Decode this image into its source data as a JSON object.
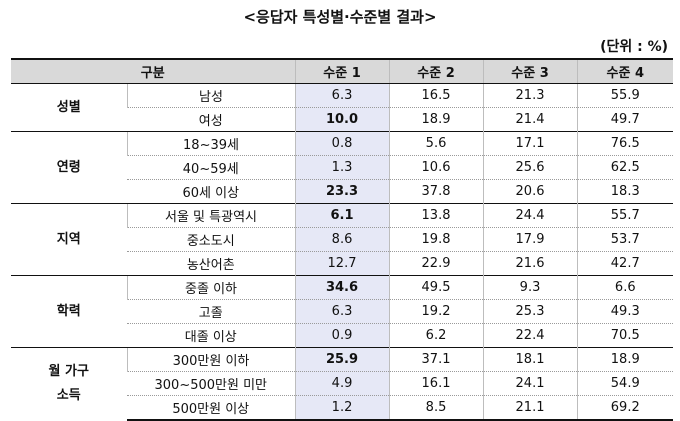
{
  "title": "<응답자 특성별·수준별 결과>",
  "unit": "(단위 : %)",
  "headers": [
    "구분",
    "수준 1",
    "수준 2",
    "수준 3",
    "수준 4"
  ],
  "groups": [
    {
      "name": "성별",
      "rows": [
        {
          "label": "남성",
          "values": [
            "6.3",
            "16.5",
            "21.3",
            "55.9"
          ],
          "bold": false
        },
        {
          "label": "여성",
          "values": [
            "10.0",
            "18.9",
            "21.4",
            "49.7"
          ],
          "bold": true
        }
      ]
    },
    {
      "name": "연령",
      "rows": [
        {
          "label": "18~39세",
          "values": [
            "0.8",
            "5.6",
            "17.1",
            "76.5"
          ],
          "bold": false
        },
        {
          "label": "40~59세",
          "values": [
            "1.3",
            "10.6",
            "25.6",
            "62.5"
          ],
          "bold": false
        },
        {
          "label": "60세 이상",
          "values": [
            "23.3",
            "37.8",
            "20.6",
            "18.3"
          ],
          "bold": true
        }
      ]
    },
    {
      "name": "지역",
      "rows": [
        {
          "label": "서울 및 특광역시",
          "values": [
            "6.1",
            "13.8",
            "24.4",
            "55.7"
          ],
          "bold": true
        },
        {
          "label": "중소도시",
          "values": [
            "8.6",
            "19.8",
            "17.9",
            "53.7"
          ],
          "bold": false
        },
        {
          "label": "농산어촌",
          "values": [
            "12.7",
            "22.9",
            "21.6",
            "42.7"
          ],
          "bold": false
        }
      ]
    },
    {
      "name": "학력",
      "rows": [
        {
          "label": "중졸 이하",
          "values": [
            "34.6",
            "49.5",
            "9.3",
            "6.6"
          ],
          "bold": true
        },
        {
          "label": "고졸",
          "values": [
            "6.3",
            "19.2",
            "25.3",
            "49.3"
          ],
          "bold": false
        },
        {
          "label": "대졸 이상",
          "values": [
            "0.9",
            "6.2",
            "22.4",
            "70.5"
          ],
          "bold": false
        }
      ]
    },
    {
      "name": "월 가구\n소득",
      "rows": [
        {
          "label": "300만원 이하",
          "values": [
            "25.9",
            "37.1",
            "18.1",
            "18.9"
          ],
          "bold": true
        },
        {
          "label": "300~500만원 미만",
          "values": [
            "4.9",
            "16.1",
            "24.1",
            "54.9"
          ],
          "bold": false
        },
        {
          "label": "500만원 이상",
          "values": [
            "1.2",
            "8.5",
            "21.1",
            "69.2"
          ],
          "bold": false
        }
      ]
    }
  ]
}
